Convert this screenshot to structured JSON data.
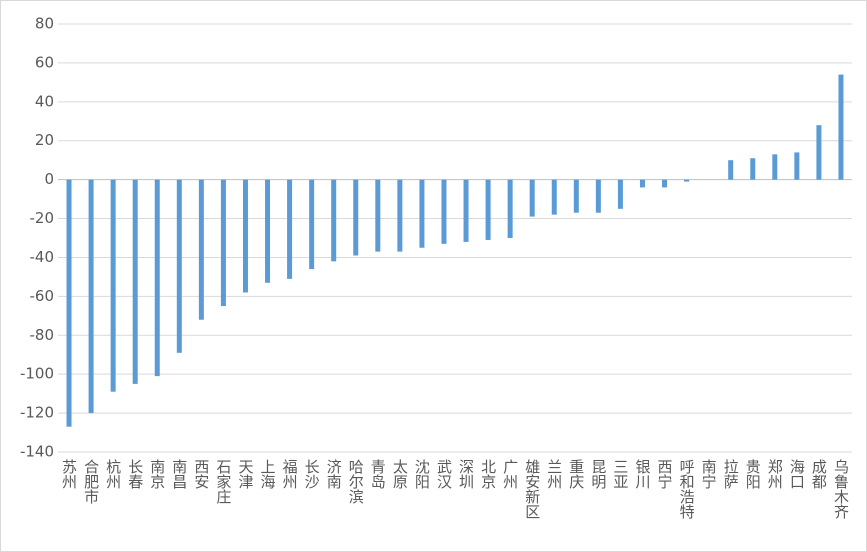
{
  "chart_data": {
    "type": "bar",
    "categories": [
      "苏州",
      "合肥市",
      "杭州",
      "长春",
      "南京",
      "南昌",
      "西安",
      "石家庄",
      "天津",
      "上海",
      "福州",
      "长沙",
      "济南",
      "哈尔滨",
      "青岛",
      "太原",
      "沈阳",
      "武汉",
      "深圳",
      "北京",
      "广州",
      "雄安新区",
      "兰州",
      "重庆",
      "昆明",
      "三亚",
      "银川",
      "西宁",
      "呼和浩特",
      "南宁",
      "拉萨",
      "贵阳",
      "郑州",
      "海口",
      "成都",
      "乌鲁木齐"
    ],
    "values": [
      -127,
      -120,
      -109,
      -105,
      -101,
      -89,
      -72,
      -65,
      -58,
      -53,
      -51,
      -46,
      -42,
      -39,
      -37,
      -37,
      -35,
      -33,
      -32,
      -31,
      -30,
      -19,
      -18,
      -17,
      -17,
      -15,
      -4,
      -4,
      -1,
      0,
      10,
      11,
      13,
      14,
      28,
      54
    ],
    "color": "#5b9bd5",
    "ylim": [
      -140,
      80
    ],
    "yticks": [
      -140,
      -120,
      -100,
      -80,
      -60,
      -40,
      -20,
      0,
      20,
      40,
      60,
      80
    ],
    "grid": true
  }
}
